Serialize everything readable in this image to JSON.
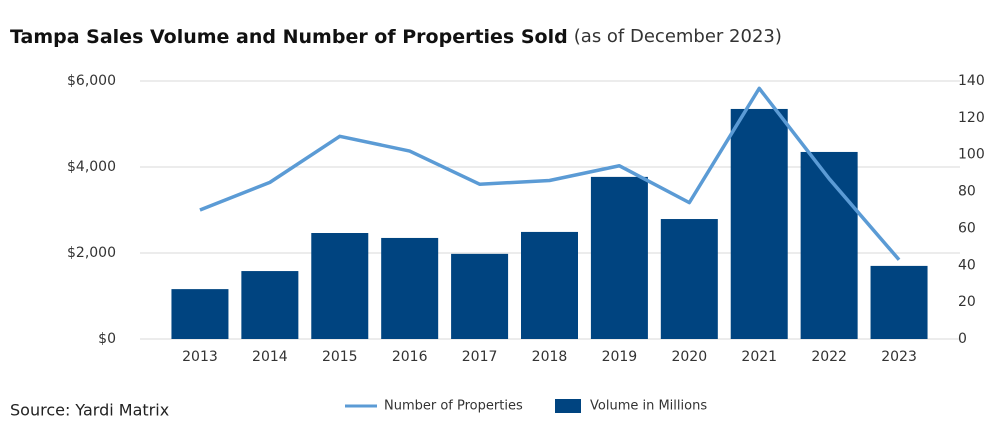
{
  "chart_data": {
    "type": "bar_line",
    "title": "Tampa Sales Volume and Number of Properties Sold",
    "subtitle": "(as of December 2023)",
    "source": "Source: Yardi Matrix",
    "categories": [
      "2013",
      "2014",
      "2015",
      "2016",
      "2017",
      "2018",
      "2019",
      "2020",
      "2021",
      "2022",
      "2023"
    ],
    "series": [
      {
        "name": "Number of Properties",
        "type": "line",
        "axis": "y2",
        "color": "#5b9bd5",
        "values": [
          70,
          85,
          110,
          102,
          84,
          86,
          94,
          74,
          136,
          87,
          43
        ]
      },
      {
        "name": "Volume in Millions",
        "type": "bar",
        "color": "#004480",
        "values": [
          1160,
          1580,
          2465,
          2350,
          1980,
          2490,
          3770,
          2790,
          5350,
          4350,
          1700
        ]
      }
    ],
    "ylim": [
      0,
      6000
    ],
    "yticks": [
      {
        "value": 0,
        "label": "$0"
      },
      {
        "value": 2000,
        "label": "$2,000"
      },
      {
        "value": 4000,
        "label": "$4,000"
      },
      {
        "value": 6000,
        "label": "$6,000"
      }
    ],
    "y2lim": [
      0,
      140
    ],
    "y2ticks": [
      0,
      20,
      40,
      60,
      80,
      100,
      120,
      140
    ],
    "grid": true,
    "legend": "bottom"
  }
}
